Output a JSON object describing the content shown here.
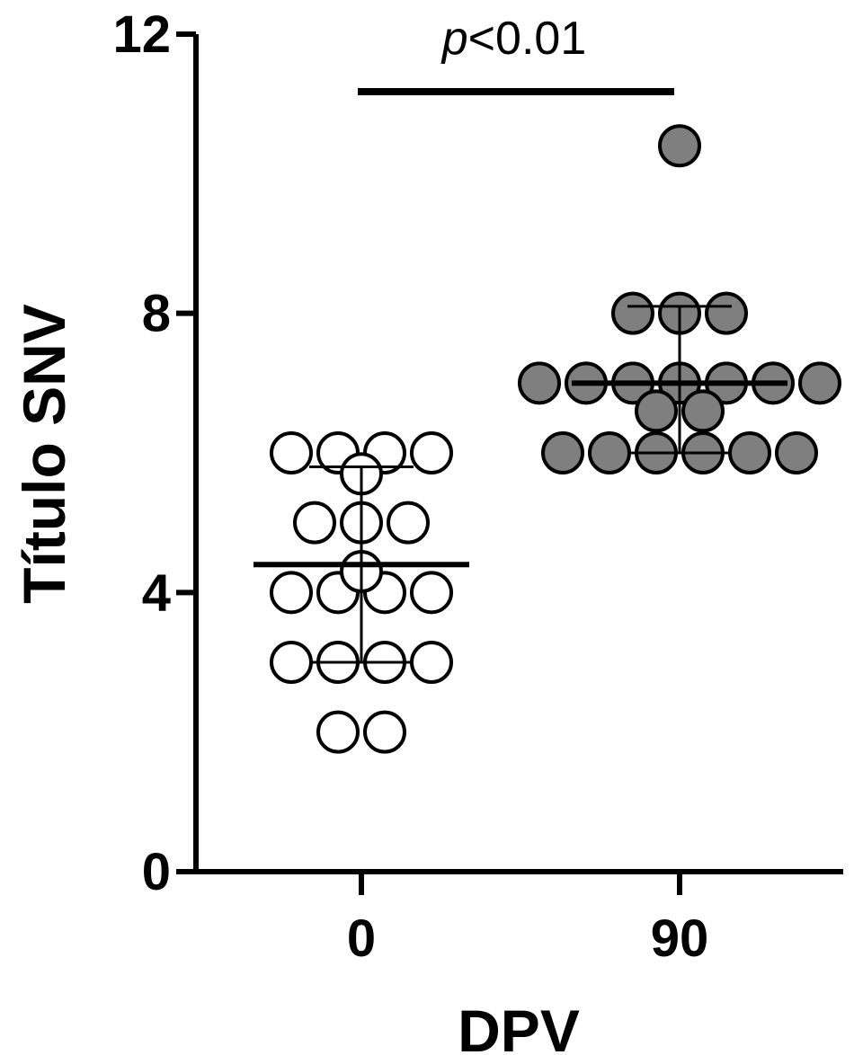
{
  "chart_data": {
    "type": "scatter",
    "xlabel": "DPV",
    "ylabel": "Título SNV",
    "ylim": [
      0,
      12
    ],
    "yticks": [
      0,
      4,
      8,
      12
    ],
    "ytick_labels": [
      "0",
      "4",
      "8",
      "12"
    ],
    "categories": [
      "0",
      "90"
    ],
    "grid": false,
    "annotation": {
      "label_italic": "p",
      "label_rest": "<0.01"
    },
    "series": [
      {
        "category": "0",
        "fill": "#ffffff",
        "values": [
          6,
          6,
          6,
          6,
          5.7,
          5,
          5,
          5,
          4.3,
          4,
          4,
          4,
          4,
          3,
          3,
          3,
          3,
          2,
          2
        ],
        "mean": 4.4,
        "sd_low": 3.0,
        "sd_high": 5.8
      },
      {
        "category": "90",
        "fill": "#7f7f7f",
        "values": [
          10.4,
          8,
          8,
          8,
          7,
          7,
          7,
          7,
          7,
          7,
          7,
          6.6,
          6.6,
          6,
          6,
          6,
          6,
          6,
          6
        ],
        "mean": 7.0,
        "sd_low": 6.0,
        "sd_high": 8.1
      }
    ]
  }
}
